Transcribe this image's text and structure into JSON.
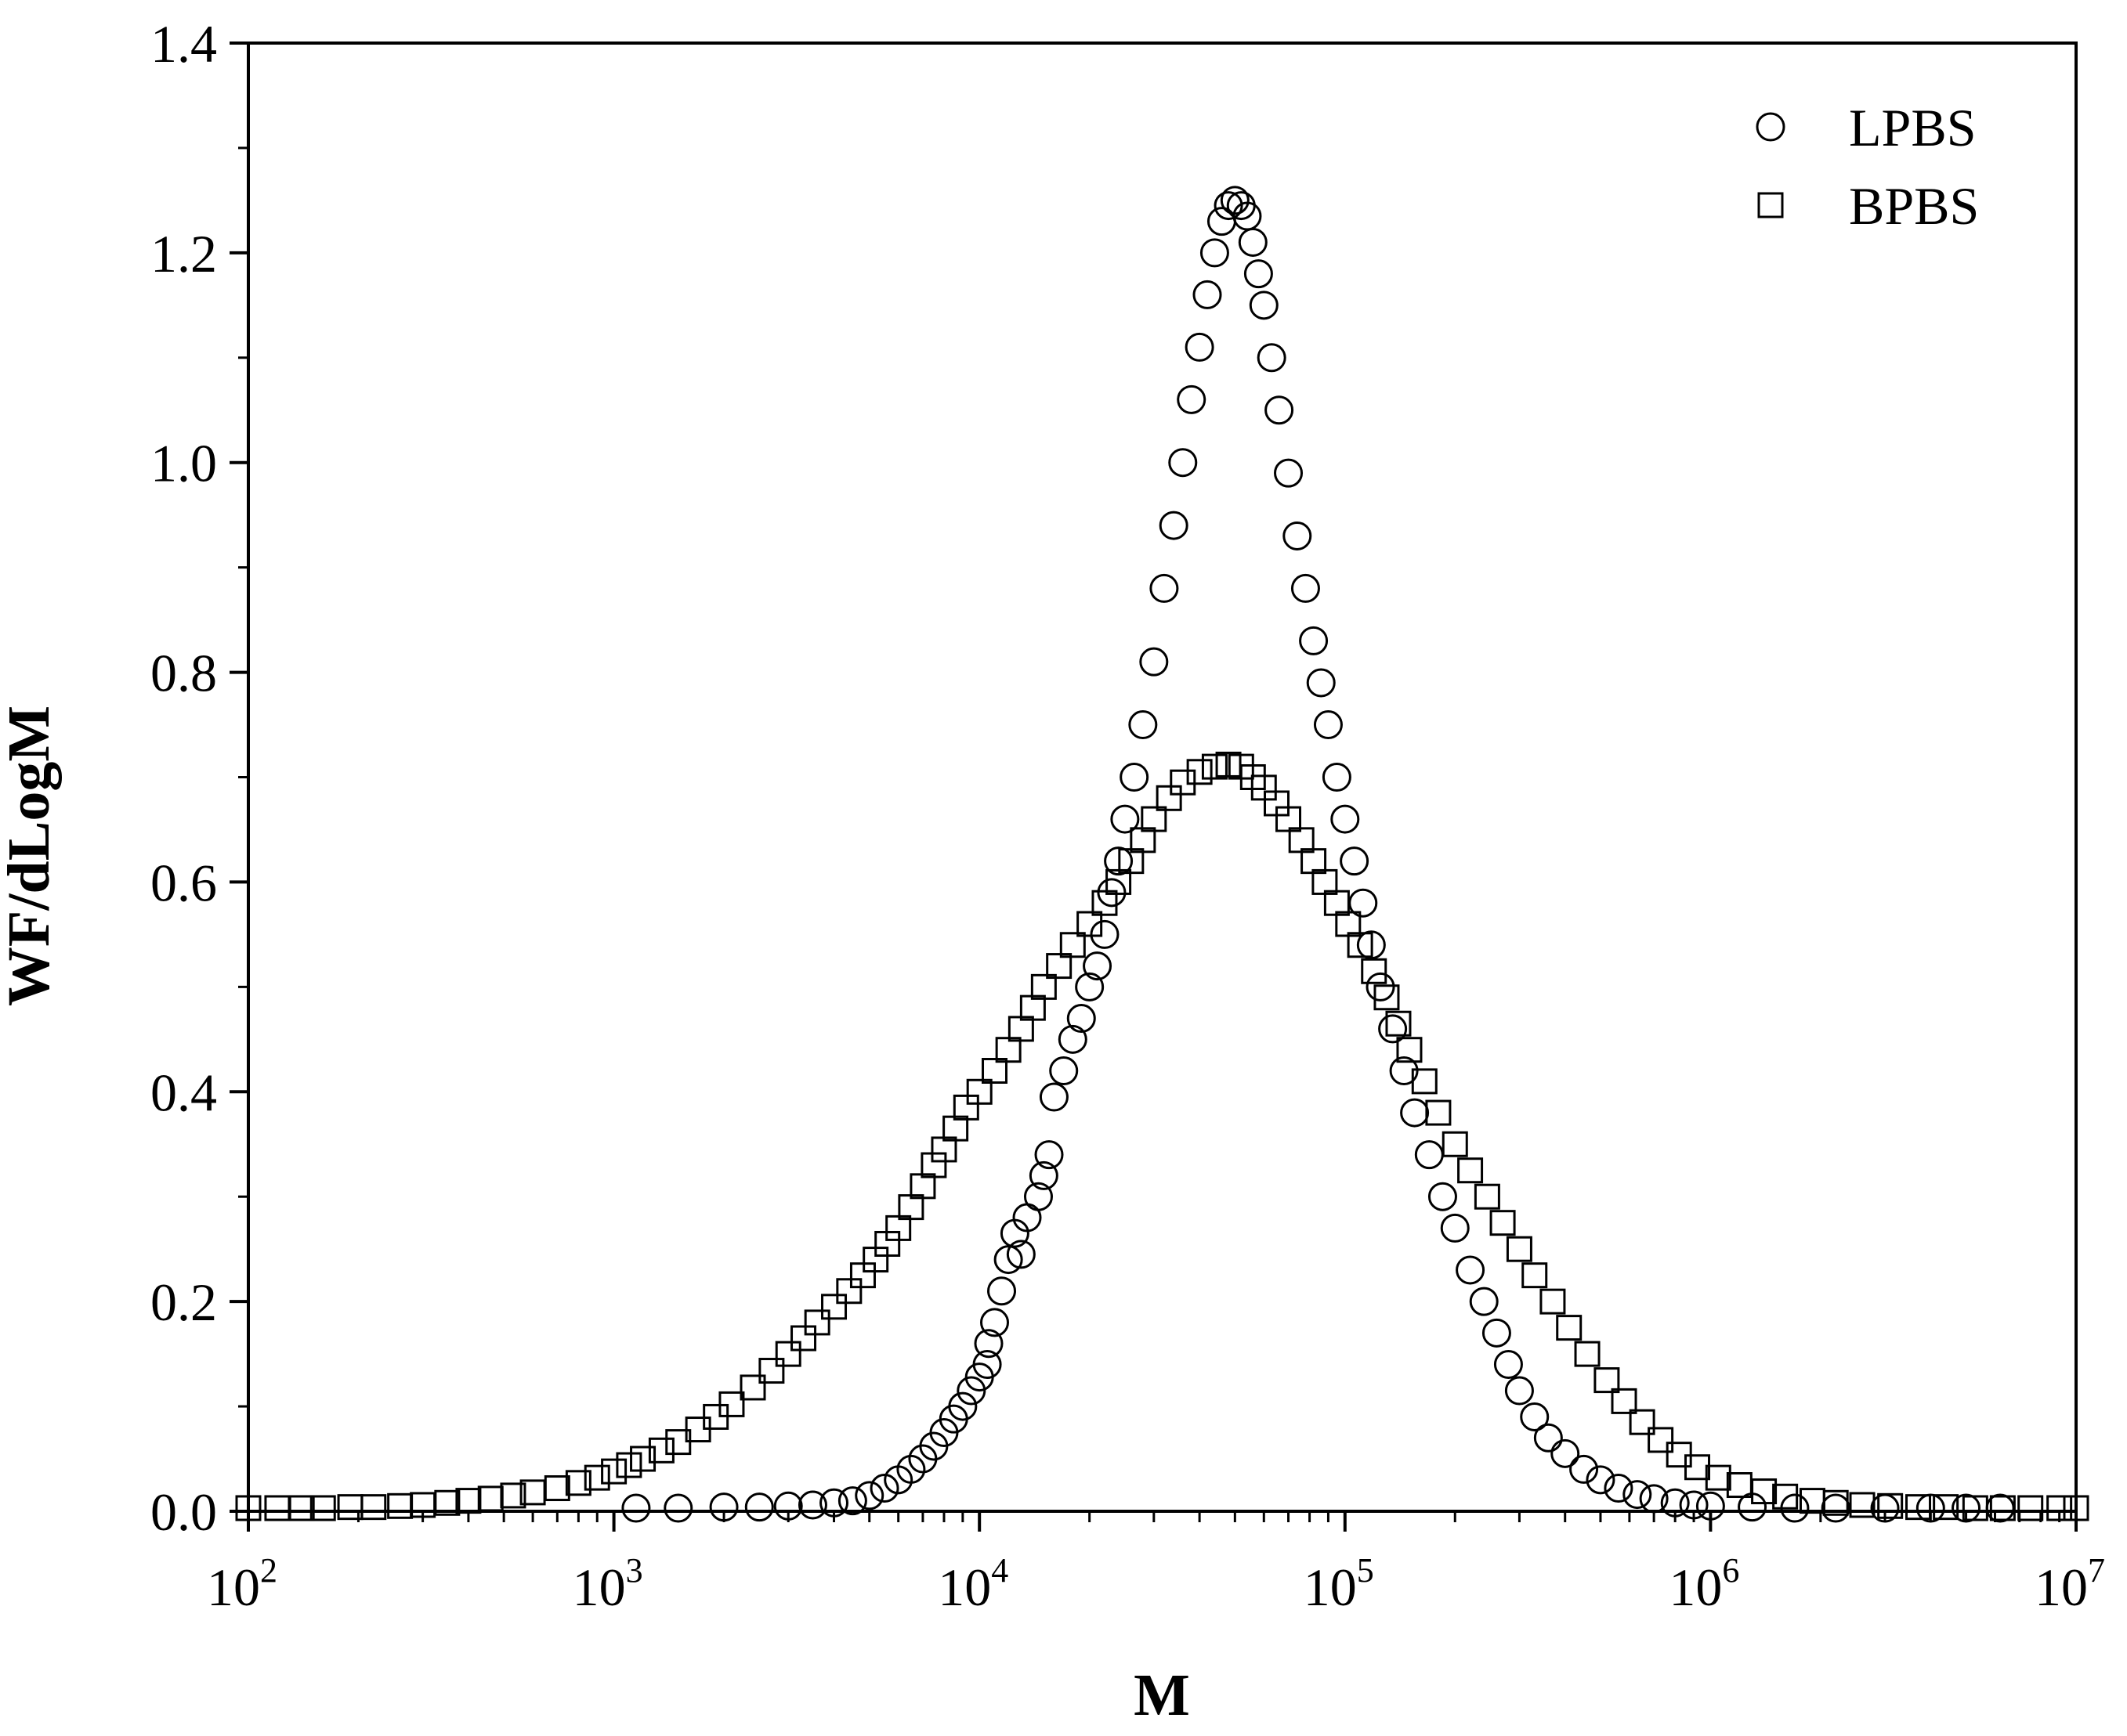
{
  "chart_data": {
    "type": "scatter",
    "title": "",
    "xlabel": "M",
    "ylabel": "WF/dLogM",
    "x_scale": "log",
    "xlim": [
      100,
      10000000
    ],
    "ylim": [
      0,
      1.4
    ],
    "grid": false,
    "legend_position": "top-right",
    "x_ticks": [
      {
        "value": 100,
        "base": "10",
        "exp": "2"
      },
      {
        "value": 1000,
        "base": "10",
        "exp": "3"
      },
      {
        "value": 10000,
        "base": "10",
        "exp": "4"
      },
      {
        "value": 100000,
        "base": "10",
        "exp": "5"
      },
      {
        "value": 1000000,
        "base": "10",
        "exp": "6"
      },
      {
        "value": 10000000,
        "base": "10",
        "exp": "7"
      }
    ],
    "y_ticks": [
      {
        "value": 0,
        "label": "0.0"
      },
      {
        "value": 0.2,
        "label": "0.2"
      },
      {
        "value": 0.4,
        "label": "0.4"
      },
      {
        "value": 0.6,
        "label": "0.6"
      },
      {
        "value": 0.8,
        "label": "0.8"
      },
      {
        "value": 1.0,
        "label": "1.0"
      },
      {
        "value": 1.2,
        "label": "1.2"
      },
      {
        "value": 1.4,
        "label": "1.4"
      }
    ],
    "series": [
      {
        "name": "LPBS",
        "marker": "circle",
        "points": [
          [
            1150,
            0.003
          ],
          [
            1500,
            0.003
          ],
          [
            2000,
            0.004
          ],
          [
            2500,
            0.004
          ],
          [
            3000,
            0.005
          ],
          [
            3500,
            0.006
          ],
          [
            4000,
            0.008
          ],
          [
            4500,
            0.01
          ],
          [
            5000,
            0.015
          ],
          [
            5500,
            0.022
          ],
          [
            6000,
            0.03
          ],
          [
            6500,
            0.04
          ],
          [
            7000,
            0.05
          ],
          [
            7500,
            0.062
          ],
          [
            8000,
            0.075
          ],
          [
            8500,
            0.088
          ],
          [
            9000,
            0.1
          ],
          [
            9500,
            0.115
          ],
          [
            10000,
            0.128
          ],
          [
            10500,
            0.14
          ],
          [
            10600,
            0.16
          ],
          [
            11000,
            0.18
          ],
          [
            11500,
            0.21
          ],
          [
            12000,
            0.24
          ],
          [
            12500,
            0.265
          ],
          [
            13000,
            0.245
          ],
          [
            13500,
            0.28
          ],
          [
            14500,
            0.3
          ],
          [
            15000,
            0.32
          ],
          [
            15500,
            0.34
          ],
          [
            16000,
            0.395
          ],
          [
            17000,
            0.42
          ],
          [
            18000,
            0.45
          ],
          [
            19000,
            0.47
          ],
          [
            20000,
            0.5
          ],
          [
            21000,
            0.52
          ],
          [
            22000,
            0.55
          ],
          [
            23000,
            0.59
          ],
          [
            24000,
            0.62
          ],
          [
            25000,
            0.66
          ],
          [
            26500,
            0.7
          ],
          [
            28000,
            0.75
          ],
          [
            30000,
            0.81
          ],
          [
            32000,
            0.88
          ],
          [
            34000,
            0.94
          ],
          [
            36000,
            1.0
          ],
          [
            38000,
            1.06
          ],
          [
            40000,
            1.11
          ],
          [
            42000,
            1.16
          ],
          [
            44000,
            1.2
          ],
          [
            46000,
            1.23
          ],
          [
            48000,
            1.245
          ],
          [
            50000,
            1.25
          ],
          [
            52000,
            1.245
          ],
          [
            54000,
            1.235
          ],
          [
            56000,
            1.21
          ],
          [
            58000,
            1.18
          ],
          [
            60000,
            1.15
          ],
          [
            63000,
            1.1
          ],
          [
            66000,
            1.05
          ],
          [
            70000,
            0.99
          ],
          [
            74000,
            0.93
          ],
          [
            78000,
            0.88
          ],
          [
            82000,
            0.83
          ],
          [
            86000,
            0.79
          ],
          [
            90000,
            0.75
          ],
          [
            95000,
            0.7
          ],
          [
            100000,
            0.66
          ],
          [
            106000,
            0.62
          ],
          [
            112000,
            0.58
          ],
          [
            118000,
            0.54
          ],
          [
            125000,
            0.5
          ],
          [
            135000,
            0.46
          ],
          [
            145000,
            0.42
          ],
          [
            155000,
            0.38
          ],
          [
            170000,
            0.34
          ],
          [
            185000,
            0.3
          ],
          [
            200000,
            0.27
          ],
          [
            220000,
            0.23
          ],
          [
            240000,
            0.2
          ],
          [
            260000,
            0.17
          ],
          [
            280000,
            0.14
          ],
          [
            300000,
            0.115
          ],
          [
            330000,
            0.09
          ],
          [
            360000,
            0.07
          ],
          [
            400000,
            0.055
          ],
          [
            450000,
            0.04
          ],
          [
            500000,
            0.03
          ],
          [
            560000,
            0.022
          ],
          [
            630000,
            0.016
          ],
          [
            700000,
            0.012
          ],
          [
            800000,
            0.008
          ],
          [
            900000,
            0.006
          ],
          [
            1000000,
            0.005
          ],
          [
            1300000,
            0.004
          ],
          [
            1700000,
            0.003
          ],
          [
            2200000,
            0.003
          ],
          [
            3000000,
            0.003
          ],
          [
            4000000,
            0.003
          ],
          [
            5000000,
            0.003
          ],
          [
            6200000,
            0.003
          ]
        ]
      },
      {
        "name": "BPBS",
        "marker": "square",
        "points": [
          [
            100,
            0.003
          ],
          [
            120,
            0.003
          ],
          [
            140,
            0.003
          ],
          [
            160,
            0.003
          ],
          [
            190,
            0.004
          ],
          [
            220,
            0.004
          ],
          [
            260,
            0.005
          ],
          [
            300,
            0.006
          ],
          [
            350,
            0.008
          ],
          [
            400,
            0.01
          ],
          [
            460,
            0.012
          ],
          [
            530,
            0.015
          ],
          [
            600,
            0.018
          ],
          [
            700,
            0.022
          ],
          [
            800,
            0.027
          ],
          [
            900,
            0.032
          ],
          [
            1000,
            0.038
          ],
          [
            1100,
            0.044
          ],
          [
            1200,
            0.05
          ],
          [
            1350,
            0.058
          ],
          [
            1500,
            0.066
          ],
          [
            1700,
            0.078
          ],
          [
            1900,
            0.09
          ],
          [
            2100,
            0.102
          ],
          [
            2400,
            0.118
          ],
          [
            2700,
            0.134
          ],
          [
            3000,
            0.15
          ],
          [
            3300,
            0.165
          ],
          [
            3600,
            0.18
          ],
          [
            4000,
            0.195
          ],
          [
            4400,
            0.21
          ],
          [
            4800,
            0.225
          ],
          [
            5200,
            0.24
          ],
          [
            5600,
            0.255
          ],
          [
            6000,
            0.27
          ],
          [
            6500,
            0.29
          ],
          [
            7000,
            0.31
          ],
          [
            7500,
            0.33
          ],
          [
            8000,
            0.345
          ],
          [
            8600,
            0.365
          ],
          [
            9200,
            0.385
          ],
          [
            10000,
            0.4
          ],
          [
            11000,
            0.42
          ],
          [
            12000,
            0.44
          ],
          [
            13000,
            0.46
          ],
          [
            14000,
            0.48
          ],
          [
            15000,
            0.5
          ],
          [
            16500,
            0.52
          ],
          [
            18000,
            0.54
          ],
          [
            20000,
            0.56
          ],
          [
            22000,
            0.58
          ],
          [
            24000,
            0.6
          ],
          [
            26000,
            0.62
          ],
          [
            28000,
            0.64
          ],
          [
            30000,
            0.66
          ],
          [
            33000,
            0.68
          ],
          [
            36000,
            0.695
          ],
          [
            40000,
            0.705
          ],
          [
            44000,
            0.71
          ],
          [
            48000,
            0.712
          ],
          [
            52000,
            0.71
          ],
          [
            56000,
            0.7
          ],
          [
            60000,
            0.69
          ],
          [
            65000,
            0.675
          ],
          [
            70000,
            0.66
          ],
          [
            76000,
            0.64
          ],
          [
            82000,
            0.62
          ],
          [
            88000,
            0.6
          ],
          [
            95000,
            0.58
          ],
          [
            102000,
            0.56
          ],
          [
            110000,
            0.54
          ],
          [
            120000,
            0.515
          ],
          [
            130000,
            0.49
          ],
          [
            140000,
            0.465
          ],
          [
            150000,
            0.44
          ],
          [
            165000,
            0.41
          ],
          [
            180000,
            0.38
          ],
          [
            200000,
            0.35
          ],
          [
            220000,
            0.325
          ],
          [
            245000,
            0.3
          ],
          [
            270000,
            0.275
          ],
          [
            300000,
            0.25
          ],
          [
            330000,
            0.225
          ],
          [
            370000,
            0.2
          ],
          [
            410000,
            0.175
          ],
          [
            460000,
            0.15
          ],
          [
            520000,
            0.125
          ],
          [
            580000,
            0.105
          ],
          [
            650000,
            0.085
          ],
          [
            730000,
            0.068
          ],
          [
            820000,
            0.054
          ],
          [
            920000,
            0.042
          ],
          [
            1050000,
            0.032
          ],
          [
            1200000,
            0.025
          ],
          [
            1400000,
            0.019
          ],
          [
            1600000,
            0.014
          ],
          [
            1900000,
            0.01
          ],
          [
            2200000,
            0.008
          ],
          [
            2600000,
            0.006
          ],
          [
            3100000,
            0.005
          ],
          [
            3700000,
            0.004
          ],
          [
            4400000,
            0.004
          ],
          [
            5300000,
            0.003
          ],
          [
            6300000,
            0.003
          ],
          [
            7500000,
            0.003
          ],
          [
            9000000,
            0.003
          ],
          [
            10000000,
            0.003
          ]
        ]
      }
    ]
  }
}
